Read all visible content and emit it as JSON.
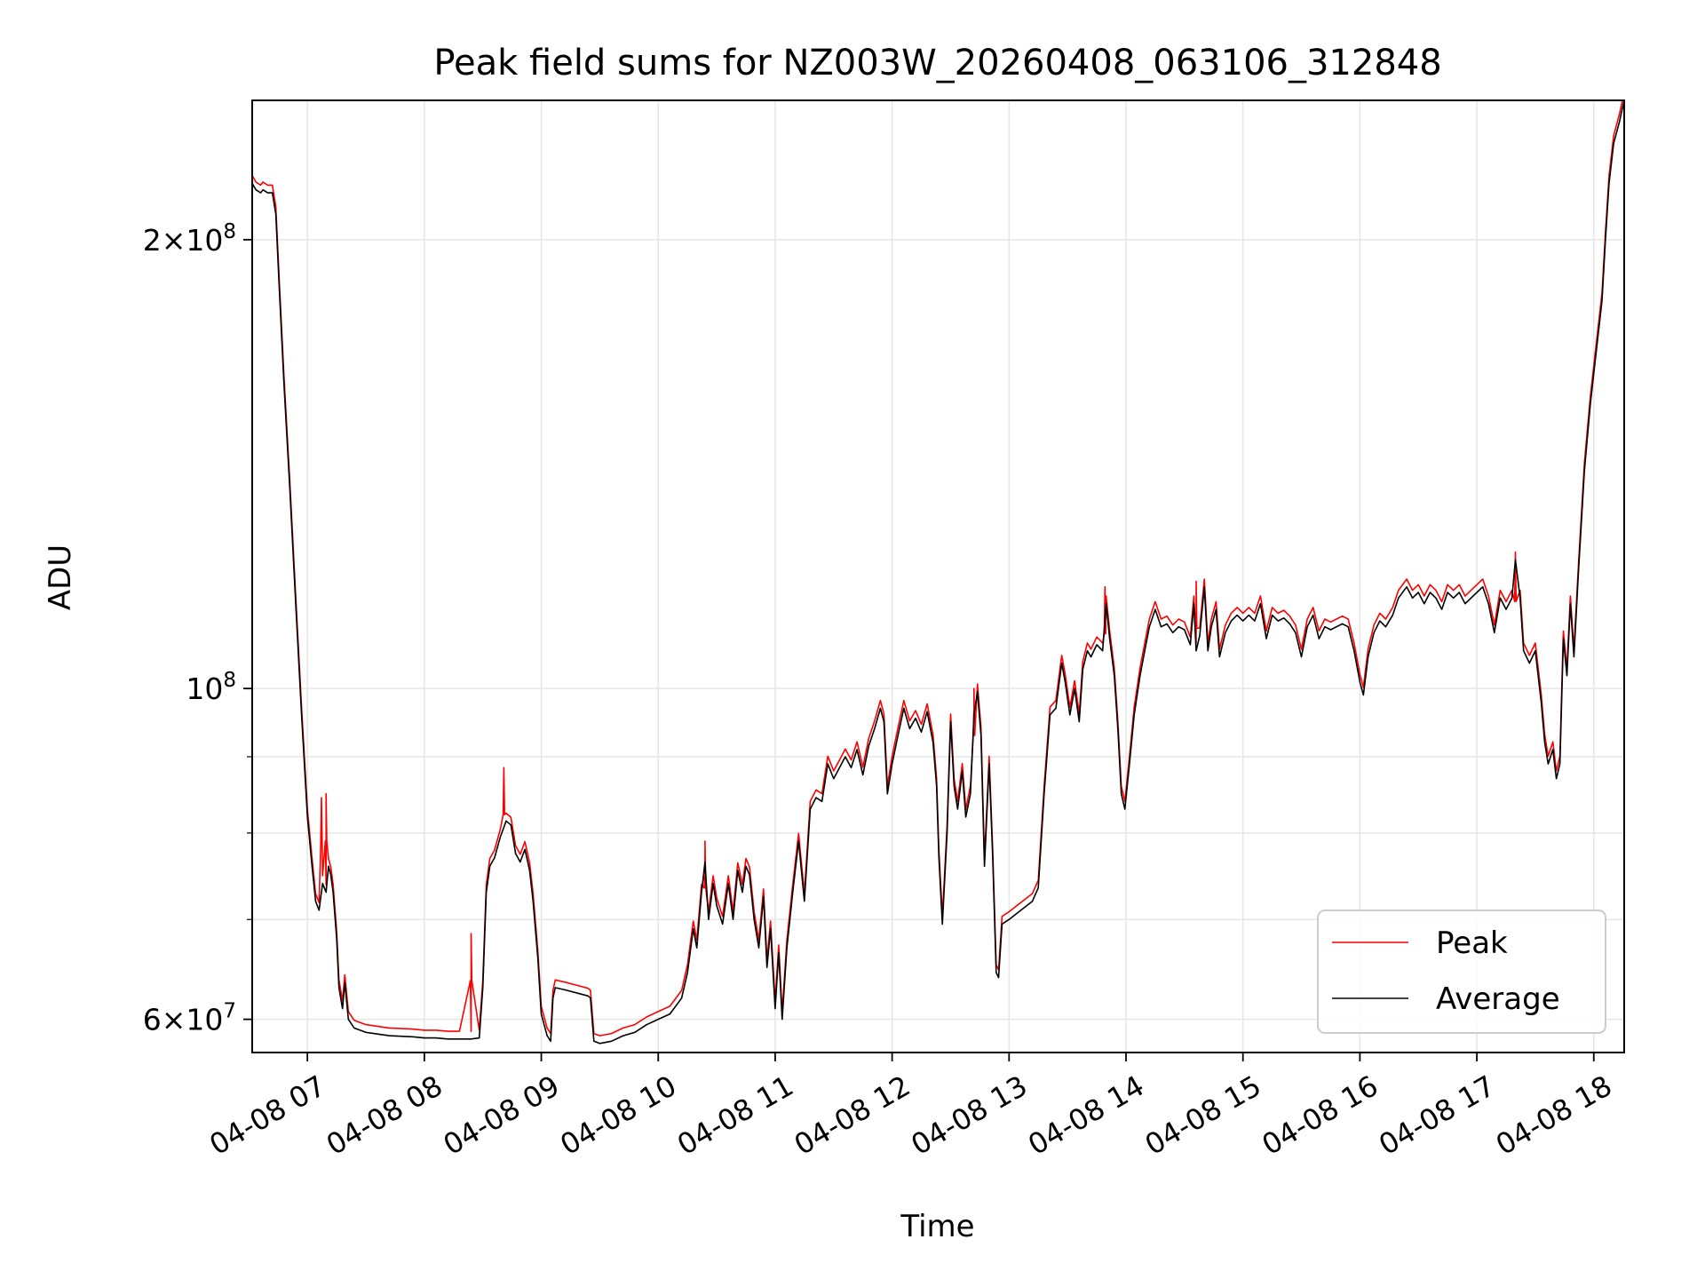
{
  "chart_data": {
    "type": "line",
    "title": "Peak field sums for NZ003W_20260408_063106_312848",
    "xlabel": "Time",
    "ylabel": "ADU",
    "yscale": "log",
    "ylim": [
      57000000,
      248000000
    ],
    "xlim": [
      6.528,
      18.26
    ],
    "grid": true,
    "legend_position": "bottom-right",
    "x_ticks": [
      {
        "value": 7,
        "label": "04-08 07"
      },
      {
        "value": 8,
        "label": "04-08 08"
      },
      {
        "value": 9,
        "label": "04-08 09"
      },
      {
        "value": 10,
        "label": "04-08 10"
      },
      {
        "value": 11,
        "label": "04-08 11"
      },
      {
        "value": 12,
        "label": "04-08 12"
      },
      {
        "value": 13,
        "label": "04-08 13"
      },
      {
        "value": 14,
        "label": "04-08 14"
      },
      {
        "value": 15,
        "label": "04-08 15"
      },
      {
        "value": 16,
        "label": "04-08 16"
      },
      {
        "value": 17,
        "label": "04-08 17"
      },
      {
        "value": 18,
        "label": "04-08 18"
      }
    ],
    "y_ticks_major": [
      {
        "value": 60000000,
        "mant": "6",
        "exp": "7"
      },
      {
        "value": 100000000,
        "mant": "",
        "exp": "8"
      },
      {
        "value": 200000000,
        "mant": "2",
        "exp": "8"
      }
    ],
    "y_ticks_minor": [
      70000000,
      80000000,
      90000000
    ],
    "series": [
      {
        "name": "Peak",
        "color": "#ff0000"
      },
      {
        "name": "Average",
        "color": "#000000"
      }
    ],
    "average_points": [
      [
        6.53,
        218000000.0
      ],
      [
        6.56,
        216000000.0
      ],
      [
        6.6,
        215000000.0
      ],
      [
        6.62,
        216000000.0
      ],
      [
        6.66,
        215000000.0
      ],
      [
        6.7,
        215000000.0
      ],
      [
        6.73,
        208000000.0
      ],
      [
        6.76,
        185000000.0
      ],
      [
        6.8,
        160000000.0
      ],
      [
        6.85,
        136000000.0
      ],
      [
        6.9,
        114000000.0
      ],
      [
        6.95,
        96000000.0
      ],
      [
        7.0,
        82000000.0
      ],
      [
        7.04,
        76000000.0
      ],
      [
        7.07,
        72000000.0
      ],
      [
        7.1,
        71000000.0
      ],
      [
        7.13,
        74000000.0
      ],
      [
        7.16,
        73000000.0
      ],
      [
        7.18,
        76000000.0
      ],
      [
        7.2,
        75000000.0
      ],
      [
        7.22,
        73000000.0
      ],
      [
        7.25,
        68000000.0
      ],
      [
        7.27,
        63000000.0
      ],
      [
        7.3,
        61000000.0
      ],
      [
        7.32,
        63500000.0
      ],
      [
        7.35,
        60000000.0
      ],
      [
        7.4,
        59200000.0
      ],
      [
        7.5,
        58800000.0
      ],
      [
        7.7,
        58500000.0
      ],
      [
        7.9,
        58400000.0
      ],
      [
        8.0,
        58300000.0
      ],
      [
        8.1,
        58300000.0
      ],
      [
        8.2,
        58200000.0
      ],
      [
        8.3,
        58200000.0
      ],
      [
        8.4,
        58200000.0
      ],
      [
        8.47,
        58300000.0
      ],
      [
        8.5,
        63000000.0
      ],
      [
        8.53,
        73000000.0
      ],
      [
        8.56,
        76000000.0
      ],
      [
        8.6,
        77000000.0
      ],
      [
        8.65,
        79500000.0
      ],
      [
        8.7,
        81500000.0
      ],
      [
        8.74,
        81000000.0
      ],
      [
        8.78,
        77500000.0
      ],
      [
        8.82,
        76500000.0
      ],
      [
        8.86,
        78000000.0
      ],
      [
        8.9,
        75500000.0
      ],
      [
        8.93,
        72000000.0
      ],
      [
        8.97,
        66000000.0
      ],
      [
        9.0,
        60500000.0
      ],
      [
        9.05,
        58500000.0
      ],
      [
        9.08,
        58000000.0
      ],
      [
        9.1,
        62000000.0
      ],
      [
        9.12,
        63000000.0
      ],
      [
        9.2,
        62800000.0
      ],
      [
        9.3,
        62500000.0
      ],
      [
        9.4,
        62200000.0
      ],
      [
        9.42,
        62000000.0
      ],
      [
        9.45,
        58000000.0
      ],
      [
        9.5,
        57800000.0
      ],
      [
        9.6,
        58000000.0
      ],
      [
        9.7,
        58500000.0
      ],
      [
        9.8,
        58800000.0
      ],
      [
        9.9,
        59500000.0
      ],
      [
        10.0,
        60000000.0
      ],
      [
        10.1,
        60500000.0
      ],
      [
        10.2,
        62000000.0
      ],
      [
        10.25,
        64500000.0
      ],
      [
        10.3,
        69000000.0
      ],
      [
        10.33,
        67000000.0
      ],
      [
        10.37,
        73000000.0
      ],
      [
        10.4,
        76500000.0
      ],
      [
        10.43,
        70000000.0
      ],
      [
        10.47,
        74000000.0
      ],
      [
        10.5,
        71500000.0
      ],
      [
        10.55,
        69500000.0
      ],
      [
        10.6,
        74000000.0
      ],
      [
        10.64,
        70000000.0
      ],
      [
        10.68,
        75500000.0
      ],
      [
        10.72,
        73000000.0
      ],
      [
        10.75,
        76000000.0
      ],
      [
        10.78,
        75000000.0
      ],
      [
        10.82,
        70000000.0
      ],
      [
        10.86,
        67000000.0
      ],
      [
        10.9,
        72500000.0
      ],
      [
        10.93,
        65000000.0
      ],
      [
        10.96,
        69000000.0
      ],
      [
        11.0,
        61000000.0
      ],
      [
        11.03,
        66500000.0
      ],
      [
        11.06,
        60000000.0
      ],
      [
        11.1,
        67000000.0
      ],
      [
        11.15,
        73000000.0
      ],
      [
        11.2,
        79000000.0
      ],
      [
        11.25,
        72000000.0
      ],
      [
        11.3,
        83000000.0
      ],
      [
        11.35,
        84500000.0
      ],
      [
        11.4,
        84000000.0
      ],
      [
        11.45,
        89000000.0
      ],
      [
        11.5,
        87000000.0
      ],
      [
        11.55,
        88500000.0
      ],
      [
        11.6,
        90000000.0
      ],
      [
        11.65,
        88500000.0
      ],
      [
        11.7,
        91000000.0
      ],
      [
        11.75,
        87500000.0
      ],
      [
        11.8,
        91500000.0
      ],
      [
        11.85,
        94000000.0
      ],
      [
        11.9,
        97000000.0
      ],
      [
        11.93,
        95000000.0
      ],
      [
        11.96,
        85000000.0
      ],
      [
        12.0,
        89000000.0
      ],
      [
        12.05,
        93000000.0
      ],
      [
        12.1,
        97000000.0
      ],
      [
        12.15,
        94000000.0
      ],
      [
        12.2,
        95500000.0
      ],
      [
        12.25,
        93500000.0
      ],
      [
        12.3,
        96500000.0
      ],
      [
        12.35,
        92000000.0
      ],
      [
        12.38,
        86000000.0
      ],
      [
        12.4,
        77000000.0
      ],
      [
        12.43,
        69500000.0
      ],
      [
        12.47,
        80000000.0
      ],
      [
        12.5,
        95000000.0
      ],
      [
        12.53,
        86000000.0
      ],
      [
        12.56,
        83000000.0
      ],
      [
        12.6,
        88000000.0
      ],
      [
        12.63,
        82000000.0
      ],
      [
        12.67,
        85000000.0
      ],
      [
        12.7,
        96000000.0
      ],
      [
        12.73,
        99500000.0
      ],
      [
        12.76,
        93000000.0
      ],
      [
        12.79,
        76000000.0
      ],
      [
        12.83,
        89000000.0
      ],
      [
        12.86,
        77000000.0
      ],
      [
        12.89,
        64500000.0
      ],
      [
        12.91,
        64000000.0
      ],
      [
        12.94,
        69500000.0
      ],
      [
        13.0,
        70000000.0
      ],
      [
        13.1,
        71000000.0
      ],
      [
        13.2,
        72000000.0
      ],
      [
        13.25,
        73500000.0
      ],
      [
        13.3,
        85000000.0
      ],
      [
        13.35,
        96000000.0
      ],
      [
        13.4,
        97000000.0
      ],
      [
        13.45,
        104000000.0
      ],
      [
        13.48,
        101000000.0
      ],
      [
        13.52,
        96000000.0
      ],
      [
        13.56,
        100000000.0
      ],
      [
        13.6,
        95000000.0
      ],
      [
        13.63,
        103000000.0
      ],
      [
        13.67,
        106000000.0
      ],
      [
        13.7,
        105000000.0
      ],
      [
        13.75,
        107000000.0
      ],
      [
        13.8,
        106000000.0
      ],
      [
        13.83,
        114000000.0
      ],
      [
        13.86,
        108000000.0
      ],
      [
        13.9,
        102000000.0
      ],
      [
        13.93,
        94000000.0
      ],
      [
        13.96,
        85000000.0
      ],
      [
        13.99,
        83000000.0
      ],
      [
        14.03,
        89000000.0
      ],
      [
        14.07,
        96000000.0
      ],
      [
        14.12,
        102000000.0
      ],
      [
        14.16,
        106000000.0
      ],
      [
        14.2,
        110000000.0
      ],
      [
        14.25,
        113000000.0
      ],
      [
        14.3,
        110000000.0
      ],
      [
        14.35,
        110500000.0
      ],
      [
        14.4,
        109000000.0
      ],
      [
        14.45,
        110000000.0
      ],
      [
        14.5,
        109500000.0
      ],
      [
        14.55,
        107000000.0
      ],
      [
        14.58,
        114000000.0
      ],
      [
        14.6,
        106000000.0
      ],
      [
        14.63,
        108500000.0
      ],
      [
        14.67,
        117000000.0
      ],
      [
        14.7,
        106000000.0
      ],
      [
        14.73,
        110000000.0
      ],
      [
        14.77,
        113000000.0
      ],
      [
        14.8,
        105000000.0
      ],
      [
        14.85,
        109000000.0
      ],
      [
        14.9,
        111000000.0
      ],
      [
        14.95,
        112000000.0
      ],
      [
        15.0,
        111000000.0
      ],
      [
        15.05,
        112000000.0
      ],
      [
        15.1,
        111000000.0
      ],
      [
        15.15,
        114000000.0
      ],
      [
        15.2,
        108000000.0
      ],
      [
        15.25,
        112000000.0
      ],
      [
        15.3,
        111000000.0
      ],
      [
        15.35,
        111500000.0
      ],
      [
        15.4,
        110500000.0
      ],
      [
        15.45,
        109000000.0
      ],
      [
        15.5,
        105000000.0
      ],
      [
        15.55,
        110000000.0
      ],
      [
        15.6,
        112000000.0
      ],
      [
        15.65,
        108000000.0
      ],
      [
        15.7,
        110000000.0
      ],
      [
        15.75,
        109500000.0
      ],
      [
        15.8,
        110000000.0
      ],
      [
        15.85,
        110500000.0
      ],
      [
        15.9,
        110000000.0
      ],
      [
        15.95,
        106000000.0
      ],
      [
        16.0,
        101000000.0
      ],
      [
        16.03,
        99000000.0
      ],
      [
        16.07,
        105000000.0
      ],
      [
        16.12,
        109000000.0
      ],
      [
        16.17,
        111000000.0
      ],
      [
        16.22,
        110000000.0
      ],
      [
        16.28,
        112000000.0
      ],
      [
        16.33,
        115000000.0
      ],
      [
        16.4,
        117000000.0
      ],
      [
        16.45,
        115000000.0
      ],
      [
        16.5,
        116000000.0
      ],
      [
        16.55,
        114000000.0
      ],
      [
        16.6,
        116000000.0
      ],
      [
        16.65,
        115000000.0
      ],
      [
        16.7,
        113000000.0
      ],
      [
        16.75,
        116000000.0
      ],
      [
        16.8,
        115000000.0
      ],
      [
        16.85,
        116000000.0
      ],
      [
        16.9,
        114000000.0
      ],
      [
        16.95,
        115000000.0
      ],
      [
        17.0,
        116000000.0
      ],
      [
        17.05,
        117000000.0
      ],
      [
        17.1,
        114000000.0
      ],
      [
        17.15,
        109000000.0
      ],
      [
        17.2,
        115000000.0
      ],
      [
        17.25,
        113000000.0
      ],
      [
        17.3,
        115000000.0
      ],
      [
        17.33,
        122000000.0
      ],
      [
        17.37,
        115000000.0
      ],
      [
        17.4,
        106000000.0
      ],
      [
        17.45,
        104000000.0
      ],
      [
        17.5,
        106000000.0
      ],
      [
        17.55,
        98000000.0
      ],
      [
        17.58,
        92000000.0
      ],
      [
        17.61,
        89000000.0
      ],
      [
        17.65,
        91000000.0
      ],
      [
        17.68,
        87000000.0
      ],
      [
        17.71,
        89000000.0
      ],
      [
        17.74,
        108000000.0
      ],
      [
        17.77,
        102000000.0
      ],
      [
        17.8,
        114000000.0
      ],
      [
        17.83,
        105000000.0
      ],
      [
        17.87,
        120000000.0
      ],
      [
        17.92,
        140000000.0
      ],
      [
        17.97,
        155000000.0
      ],
      [
        18.02,
        168000000.0
      ],
      [
        18.07,
        182000000.0
      ],
      [
        18.1,
        200000000.0
      ],
      [
        18.13,
        218000000.0
      ],
      [
        18.17,
        232000000.0
      ],
      [
        18.22,
        240000000.0
      ],
      [
        18.26,
        248000000.0
      ]
    ],
    "peak_spikes": [
      [
        7.12,
        84500000.0
      ],
      [
        7.16,
        85000000.0
      ],
      [
        8.4,
        68500000.0
      ],
      [
        8.68,
        88500000.0
      ],
      [
        10.4,
        79000000.0
      ],
      [
        12.7,
        100000000.0
      ],
      [
        13.82,
        117000000.0
      ],
      [
        14.6,
        118000000.0
      ],
      [
        17.33,
        123000000.0
      ]
    ]
  }
}
